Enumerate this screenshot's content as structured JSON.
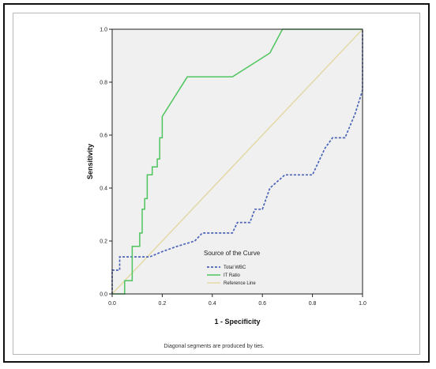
{
  "chart_data": {
    "type": "line",
    "title": "",
    "xlabel": "1 - Specificity",
    "ylabel": "Sensitivity",
    "xlim": [
      0,
      1
    ],
    "ylim": [
      0,
      1
    ],
    "x_ticks": [
      "0.0",
      "0.2",
      "0.4",
      "0.6",
      "0.8",
      "1.0"
    ],
    "y_ticks": [
      "0.0",
      "0.2",
      "0.4",
      "0.6",
      "0.8",
      "1.0"
    ],
    "grid": false,
    "background_color": "#f0f0f0",
    "legend": {
      "title": "Source of the Curve",
      "placement": "lower-right inside plot"
    },
    "footnote": "Diagonal segments are produced by ties.",
    "series": [
      {
        "name": "Total WBC",
        "color": "#4a63b8",
        "style": "dashed",
        "points": [
          [
            0.0,
            0.0
          ],
          [
            0.0,
            0.09
          ],
          [
            0.03,
            0.09
          ],
          [
            0.03,
            0.14
          ],
          [
            0.15,
            0.14
          ],
          [
            0.2,
            0.16
          ],
          [
            0.26,
            0.18
          ],
          [
            0.33,
            0.2
          ],
          [
            0.36,
            0.23
          ],
          [
            0.48,
            0.23
          ],
          [
            0.5,
            0.27
          ],
          [
            0.55,
            0.27
          ],
          [
            0.57,
            0.32
          ],
          [
            0.6,
            0.32
          ],
          [
            0.63,
            0.4
          ],
          [
            0.69,
            0.45
          ],
          [
            0.8,
            0.45
          ],
          [
            0.85,
            0.55
          ],
          [
            0.88,
            0.59
          ],
          [
            0.93,
            0.59
          ],
          [
            0.97,
            0.68
          ],
          [
            1.0,
            0.77
          ],
          [
            1.0,
            1.0
          ]
        ]
      },
      {
        "name": "IT Ratio",
        "color": "#4ec45e",
        "style": "solid",
        "points": [
          [
            0.0,
            0.0
          ],
          [
            0.05,
            0.0
          ],
          [
            0.05,
            0.05
          ],
          [
            0.08,
            0.05
          ],
          [
            0.08,
            0.18
          ],
          [
            0.11,
            0.18
          ],
          [
            0.11,
            0.23
          ],
          [
            0.12,
            0.23
          ],
          [
            0.12,
            0.32
          ],
          [
            0.13,
            0.32
          ],
          [
            0.13,
            0.36
          ],
          [
            0.14,
            0.36
          ],
          [
            0.14,
            0.45
          ],
          [
            0.16,
            0.45
          ],
          [
            0.16,
            0.48
          ],
          [
            0.18,
            0.48
          ],
          [
            0.18,
            0.51
          ],
          [
            0.19,
            0.51
          ],
          [
            0.19,
            0.59
          ],
          [
            0.2,
            0.59
          ],
          [
            0.2,
            0.67
          ],
          [
            0.3,
            0.82
          ],
          [
            0.48,
            0.82
          ],
          [
            0.63,
            0.91
          ],
          [
            0.68,
            1.0
          ],
          [
            1.0,
            1.0
          ]
        ]
      },
      {
        "name": "Reference Line",
        "color": "#e3d9a6",
        "style": "solid",
        "points": [
          [
            0.0,
            0.0
          ],
          [
            1.0,
            1.0
          ]
        ]
      }
    ]
  }
}
